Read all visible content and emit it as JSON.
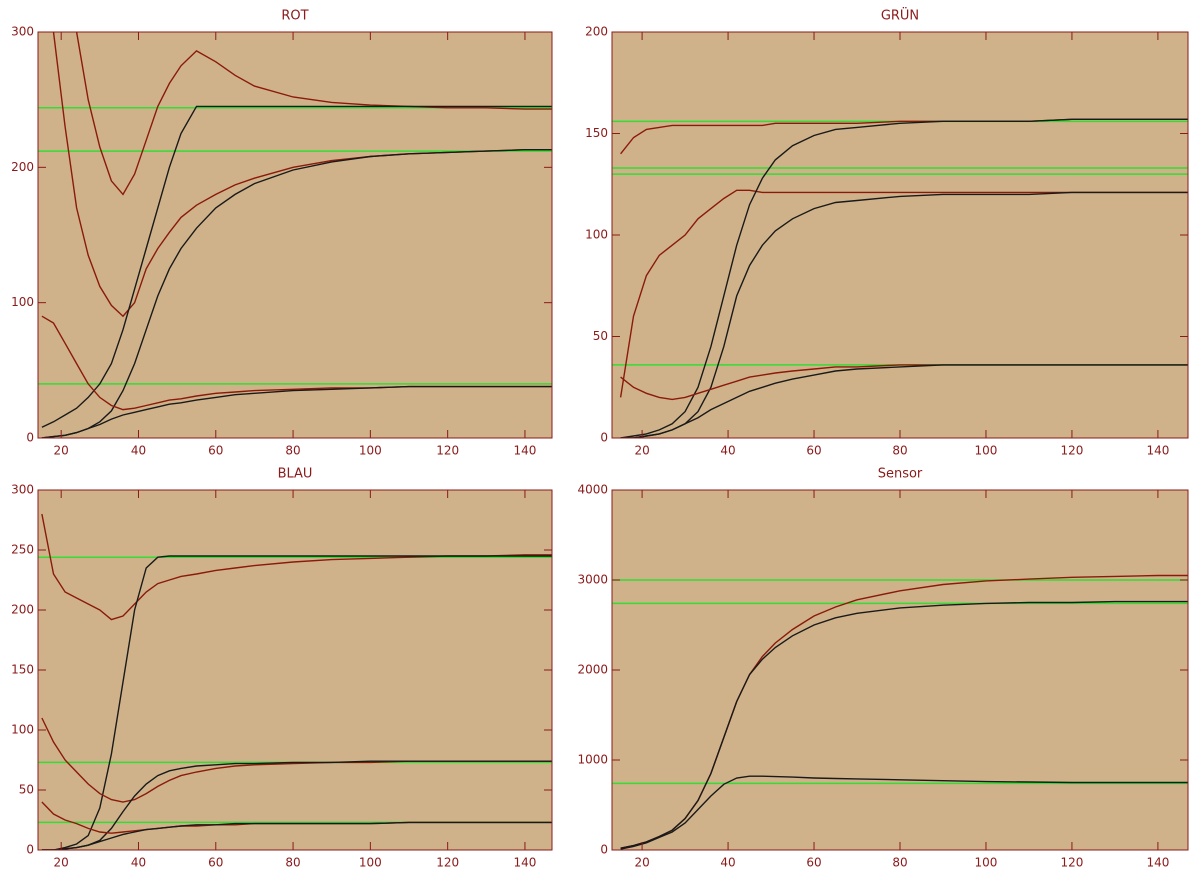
{
  "chart_data": [
    {
      "type": "line",
      "title": "ROT",
      "x": [
        15,
        18,
        21,
        24,
        27,
        30,
        33,
        36,
        39,
        42,
        45,
        48,
        51,
        55,
        60,
        65,
        70,
        80,
        90,
        100,
        110,
        120,
        130,
        140,
        147
      ],
      "xlim": [
        14,
        147
      ],
      "ylim": [
        0,
        300
      ],
      "xticks": [
        20,
        40,
        60,
        80,
        100,
        120,
        140
      ],
      "yticks": [
        0,
        100,
        200,
        300
      ],
      "hlines": [
        244,
        212,
        40
      ],
      "hline_color": "#33dd33",
      "series": [
        {
          "color": "#8b1a0a",
          "values": [
            null,
            null,
            null,
            300,
            250,
            215,
            190,
            180,
            195,
            220,
            245,
            262,
            275,
            286,
            278,
            268,
            260,
            252,
            248,
            246,
            245,
            244,
            244,
            243,
            243
          ]
        },
        {
          "color": "#8b1a0a",
          "values": [
            null,
            300,
            230,
            170,
            135,
            112,
            98,
            90,
            100,
            125,
            140,
            152,
            163,
            172,
            180,
            187,
            192,
            200,
            205,
            208,
            210,
            211,
            212,
            213,
            213
          ]
        },
        {
          "color": "#1a1a1a",
          "values": [
            8,
            12,
            17,
            22,
            30,
            40,
            55,
            80,
            110,
            140,
            170,
            200,
            225,
            245,
            245,
            245,
            245,
            245,
            245,
            245,
            245,
            245,
            245,
            245,
            245
          ]
        },
        {
          "color": "#1a1a1a",
          "values": [
            0,
            1,
            2,
            4,
            7,
            12,
            20,
            35,
            55,
            80,
            105,
            125,
            140,
            155,
            170,
            180,
            188,
            198,
            204,
            208,
            210,
            211,
            212,
            213,
            213
          ]
        },
        {
          "color": "#8b1a0a",
          "values": [
            90,
            85,
            70,
            55,
            40,
            30,
            24,
            21,
            22,
            24,
            26,
            28,
            29,
            31,
            33,
            34,
            35,
            36,
            37,
            37,
            38,
            38,
            38,
            38,
            38
          ]
        },
        {
          "color": "#1a1a1a",
          "values": [
            0,
            1,
            2,
            4,
            7,
            10,
            14,
            17,
            19,
            21,
            23,
            25,
            26,
            28,
            30,
            32,
            33,
            35,
            36,
            37,
            38,
            38,
            38,
            38,
            38
          ]
        }
      ]
    },
    {
      "type": "line",
      "title": "GRÜN",
      "x": [
        15,
        18,
        21,
        24,
        27,
        30,
        33,
        36,
        39,
        42,
        45,
        48,
        51,
        55,
        60,
        65,
        70,
        80,
        90,
        100,
        110,
        120,
        130,
        140,
        147
      ],
      "xlim": [
        13,
        147
      ],
      "ylim": [
        0,
        200
      ],
      "xticks": [
        20,
        40,
        60,
        80,
        100,
        120,
        140
      ],
      "yticks": [
        0,
        50,
        100,
        150,
        200
      ],
      "hlines": [
        156,
        133,
        130,
        36
      ],
      "hline_color": "#33dd33",
      "series": [
        {
          "color": "#8b1a0a",
          "values": [
            140,
            148,
            152,
            153,
            154,
            154,
            154,
            154,
            154,
            154,
            154,
            154,
            155,
            155,
            155,
            155,
            155,
            156,
            156,
            156,
            156,
            157,
            157,
            157,
            157
          ]
        },
        {
          "color": "#8b1a0a",
          "values": [
            20,
            60,
            80,
            90,
            95,
            100,
            108,
            113,
            118,
            122,
            122,
            121,
            121,
            121,
            121,
            121,
            121,
            121,
            121,
            121,
            121,
            121,
            121,
            121,
            121
          ]
        },
        {
          "color": "#1a1a1a",
          "values": [
            0,
            1,
            2,
            4,
            7,
            13,
            25,
            45,
            70,
            95,
            115,
            128,
            137,
            144,
            149,
            152,
            153,
            155,
            156,
            156,
            156,
            157,
            157,
            157,
            157
          ]
        },
        {
          "color": "#1a1a1a",
          "values": [
            0,
            0,
            1,
            2,
            4,
            7,
            13,
            25,
            45,
            70,
            85,
            95,
            102,
            108,
            113,
            116,
            117,
            119,
            120,
            120,
            120,
            121,
            121,
            121,
            121
          ]
        },
        {
          "color": "#8b1a0a",
          "values": [
            30,
            25,
            22,
            20,
            19,
            20,
            22,
            24,
            26,
            28,
            30,
            31,
            32,
            33,
            34,
            35,
            35,
            36,
            36,
            36,
            36,
            36,
            36,
            36,
            36
          ]
        },
        {
          "color": "#1a1a1a",
          "values": [
            0,
            0,
            1,
            2,
            4,
            7,
            10,
            14,
            17,
            20,
            23,
            25,
            27,
            29,
            31,
            33,
            34,
            35,
            36,
            36,
            36,
            36,
            36,
            36,
            36
          ]
        }
      ]
    },
    {
      "type": "line",
      "title": "BLAU",
      "x": [
        15,
        18,
        21,
        24,
        27,
        30,
        33,
        36,
        39,
        42,
        45,
        48,
        51,
        55,
        60,
        65,
        70,
        80,
        90,
        100,
        110,
        120,
        130,
        140,
        147
      ],
      "xlim": [
        14,
        147
      ],
      "ylim": [
        0,
        300
      ],
      "xticks": [
        20,
        40,
        60,
        80,
        100,
        120,
        140
      ],
      "yticks": [
        0,
        50,
        100,
        150,
        200,
        250,
        300
      ],
      "hlines": [
        244,
        73,
        23
      ],
      "hline_color": "#33dd33",
      "series": [
        {
          "color": "#8b1a0a",
          "values": [
            280,
            230,
            215,
            210,
            205,
            200,
            192,
            195,
            205,
            215,
            222,
            225,
            228,
            230,
            233,
            235,
            237,
            240,
            242,
            243,
            244,
            245,
            245,
            246,
            246
          ]
        },
        {
          "color": "#1a1a1a",
          "values": [
            0,
            0,
            2,
            5,
            12,
            35,
            80,
            140,
            200,
            235,
            244,
            245,
            245,
            245,
            245,
            245,
            245,
            245,
            245,
            245,
            245,
            245,
            245,
            245,
            245
          ]
        },
        {
          "color": "#8b1a0a",
          "values": [
            110,
            90,
            75,
            65,
            55,
            47,
            42,
            40,
            42,
            47,
            53,
            58,
            62,
            65,
            68,
            70,
            71,
            72,
            73,
            73,
            74,
            74,
            74,
            74,
            74
          ]
        },
        {
          "color": "#1a1a1a",
          "values": [
            0,
            0,
            1,
            2,
            4,
            8,
            18,
            32,
            45,
            55,
            62,
            66,
            68,
            70,
            71,
            72,
            72,
            73,
            73,
            74,
            74,
            74,
            74,
            74,
            74
          ]
        },
        {
          "color": "#8b1a0a",
          "values": [
            40,
            30,
            25,
            22,
            18,
            15,
            14,
            15,
            16,
            17,
            18,
            19,
            20,
            20,
            21,
            21,
            22,
            22,
            22,
            22,
            23,
            23,
            23,
            23,
            23
          ]
        },
        {
          "color": "#1a1a1a",
          "values": [
            0,
            0,
            1,
            2,
            4,
            7,
            10,
            13,
            15,
            17,
            18,
            19,
            20,
            21,
            21,
            22,
            22,
            22,
            22,
            22,
            23,
            23,
            23,
            23,
            23
          ]
        }
      ]
    },
    {
      "type": "line",
      "title": "Sensor",
      "x": [
        15,
        18,
        21,
        24,
        27,
        30,
        33,
        36,
        39,
        42,
        45,
        48,
        51,
        55,
        60,
        65,
        70,
        80,
        90,
        100,
        110,
        120,
        130,
        140,
        147
      ],
      "xlim": [
        13,
        147
      ],
      "ylim": [
        0,
        4000
      ],
      "xticks": [
        20,
        40,
        60,
        80,
        100,
        120,
        140
      ],
      "yticks": [
        0,
        1000,
        2000,
        3000,
        4000
      ],
      "hlines": [
        3000,
        2740,
        740
      ],
      "hline_color": "#33dd33",
      "series": [
        {
          "color": "#8b1a0a",
          "values": [
            20,
            50,
            90,
            150,
            220,
            350,
            550,
            850,
            1250,
            1650,
            1950,
            2150,
            2300,
            2450,
            2600,
            2700,
            2780,
            2880,
            2950,
            2990,
            3010,
            3030,
            3040,
            3050,
            3050
          ]
        },
        {
          "color": "#1a1a1a",
          "values": [
            20,
            50,
            90,
            150,
            220,
            350,
            550,
            850,
            1250,
            1650,
            1950,
            2120,
            2250,
            2380,
            2500,
            2580,
            2630,
            2690,
            2720,
            2740,
            2750,
            2750,
            2760,
            2760,
            2760
          ]
        },
        {
          "color": "#1a1a1a",
          "values": [
            10,
            40,
            80,
            140,
            200,
            300,
            450,
            600,
            730,
            800,
            820,
            820,
            815,
            810,
            800,
            795,
            790,
            780,
            770,
            760,
            755,
            750,
            750,
            750,
            750
          ]
        }
      ]
    }
  ]
}
